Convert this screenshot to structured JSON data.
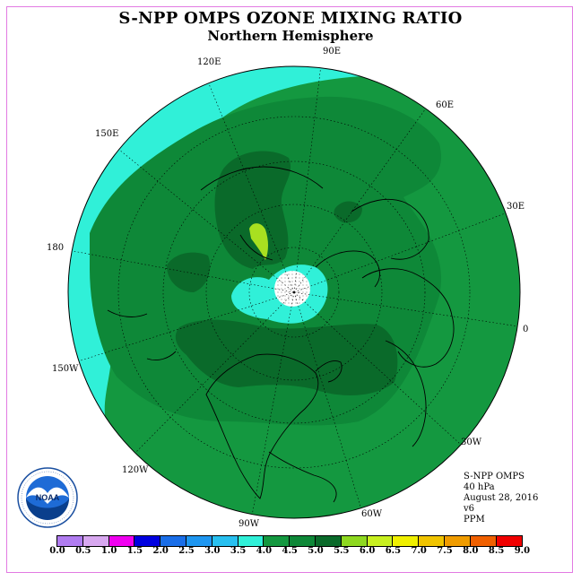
{
  "title": "S-NPP OMPS OZONE MIXING RATIO",
  "subtitle": "Northern Hemisphere",
  "longitude_labels": [
    "90E",
    "60E",
    "30E",
    "0",
    "30W",
    "60W",
    "90W",
    "120W",
    "150W",
    "180",
    "150E",
    "120E"
  ],
  "info": {
    "instrument": "S-NPP OMPS",
    "level": "40 hPa",
    "date": "August 28, 2016",
    "version": "v6",
    "units": "PPM"
  },
  "colorbar": {
    "ticks": [
      "0.0",
      "0.5",
      "1.0",
      "1.5",
      "2.0",
      "2.5",
      "3.0",
      "3.5",
      "4.0",
      "4.5",
      "5.0",
      "5.5",
      "6.0",
      "6.5",
      "7.0",
      "7.5",
      "8.0",
      "8.5",
      "9.0"
    ],
    "colors": [
      "#b07cf0",
      "#d8a8f0",
      "#f000f0",
      "#0000e0",
      "#1a6ee8",
      "#1e96f0",
      "#28c0f0",
      "#30f0d8",
      "#149840",
      "#0e8838",
      "#0a6a2a",
      "#8ed820",
      "#c8f020",
      "#f0f000",
      "#f0c400",
      "#f09c00",
      "#f06000",
      "#f00000",
      "#7a5030"
    ]
  },
  "map_colors": {
    "level_3_5_to_4_0": "#30f0d8",
    "level_4_0_to_4_5": "#149840",
    "level_4_5_to_5_0": "#0e8838",
    "level_5_0_to_5_5": "#0a6a2a",
    "level_5_5_to_6_0": "#a8e020"
  },
  "logo": {
    "name": "noaa-logo",
    "text": "NOAA"
  }
}
